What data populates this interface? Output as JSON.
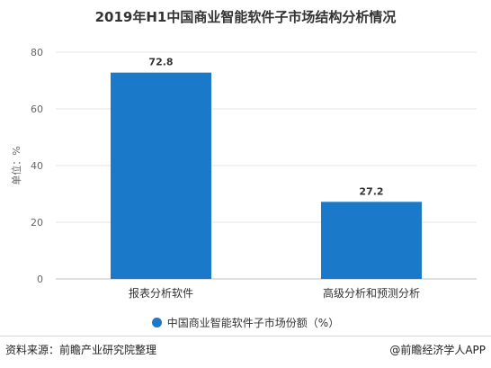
{
  "chart_data": {
    "type": "bar",
    "title": "2019年H1中国商业智能软件子市场结构分析情况",
    "categories": [
      "报表分析软件",
      "高级分析和预测分析"
    ],
    "series": [
      {
        "name": "中国商业智能软件子市场份额（%）",
        "values": [
          72.8,
          27.2
        ]
      }
    ],
    "ylabel": "单位：%",
    "ylim": [
      0,
      80
    ],
    "yticks": [
      0,
      20,
      40,
      60,
      80
    ],
    "grid": "horizontal",
    "legend": "bottom",
    "bar_color": "#1a79c9"
  },
  "footer": {
    "source": "资料来源：前瞻产业研究院整理",
    "brand": "@前瞻经济学人APP"
  }
}
